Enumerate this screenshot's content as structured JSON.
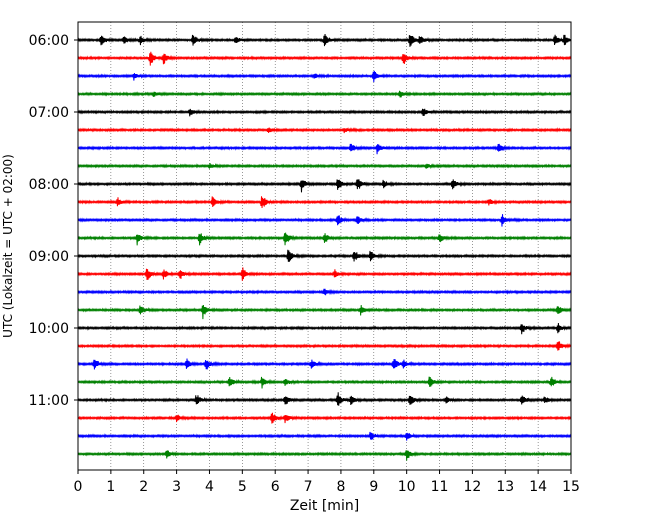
{
  "chart_data": {
    "type": "line",
    "title": "",
    "xlabel": "Zeit  [min]",
    "ylabel": "UTC (Lokalzeit = UTC + 02:00)",
    "xlim": [
      0,
      15
    ],
    "x_ticks": [
      "0",
      "1",
      "2",
      "3",
      "4",
      "5",
      "6",
      "7",
      "8",
      "9",
      "10",
      "11",
      "12",
      "13",
      "14",
      "15"
    ],
    "y_ticks": [
      "06:00",
      "07:00",
      "08:00",
      "09:00",
      "10:00",
      "11:00"
    ],
    "trace_interval_min": 15,
    "grid": "vertical dotted",
    "trace_colors": [
      "#000000",
      "#ff0000",
      "#0000ff",
      "#008000"
    ],
    "traces": [
      {
        "start": "06:00",
        "events": [
          [
            0.7,
            14
          ],
          [
            1.4,
            10
          ],
          [
            1.9,
            12
          ],
          [
            3.5,
            16
          ],
          [
            4.8,
            10
          ],
          [
            7.5,
            16
          ],
          [
            10.1,
            20
          ],
          [
            10.4,
            14
          ],
          [
            14.5,
            14
          ],
          [
            14.8,
            16
          ]
        ]
      },
      {
        "start": "06:15",
        "events": [
          [
            2.2,
            18
          ],
          [
            2.6,
            16
          ],
          [
            9.9,
            16
          ]
        ]
      },
      {
        "start": "06:30",
        "events": [
          [
            1.7,
            8
          ],
          [
            7.2,
            6
          ],
          [
            9.0,
            14
          ]
        ]
      },
      {
        "start": "06:45",
        "events": [
          [
            2.3,
            6
          ],
          [
            9.8,
            10
          ]
        ]
      },
      {
        "start": "07:00",
        "events": [
          [
            3.4,
            12
          ],
          [
            10.5,
            14
          ]
        ]
      },
      {
        "start": "07:15",
        "events": [
          [
            5.8,
            8
          ],
          [
            8.1,
            6
          ]
        ]
      },
      {
        "start": "07:30",
        "events": [
          [
            8.3,
            12
          ],
          [
            9.1,
            14
          ],
          [
            12.8,
            14
          ]
        ]
      },
      {
        "start": "07:45",
        "events": [
          [
            4.0,
            6
          ],
          [
            10.6,
            6
          ]
        ]
      },
      {
        "start": "08:00",
        "events": [
          [
            6.8,
            16
          ],
          [
            7.9,
            16
          ],
          [
            8.5,
            18
          ],
          [
            9.3,
            10
          ],
          [
            11.4,
            14
          ]
        ]
      },
      {
        "start": "08:15",
        "events": [
          [
            1.2,
            10
          ],
          [
            4.1,
            16
          ],
          [
            5.6,
            22
          ],
          [
            12.5,
            8
          ]
        ]
      },
      {
        "start": "08:30",
        "events": [
          [
            7.9,
            16
          ],
          [
            8.5,
            12
          ],
          [
            12.9,
            14
          ]
        ]
      },
      {
        "start": "08:45",
        "events": [
          [
            1.8,
            16
          ],
          [
            3.7,
            16
          ],
          [
            6.3,
            22
          ],
          [
            7.5,
            12
          ],
          [
            11.0,
            12
          ]
        ]
      },
      {
        "start": "09:00",
        "events": [
          [
            6.4,
            20
          ],
          [
            8.4,
            16
          ],
          [
            8.9,
            14
          ]
        ]
      },
      {
        "start": "09:15",
        "events": [
          [
            2.1,
            18
          ],
          [
            2.6,
            14
          ],
          [
            3.1,
            12
          ],
          [
            5.0,
            16
          ],
          [
            7.8,
            10
          ]
        ]
      },
      {
        "start": "09:30",
        "events": [
          [
            7.5,
            8
          ]
        ]
      },
      {
        "start": "09:45",
        "events": [
          [
            1.9,
            14
          ],
          [
            3.8,
            18
          ],
          [
            8.6,
            12
          ],
          [
            14.6,
            14
          ]
        ]
      },
      {
        "start": "10:00",
        "events": [
          [
            13.5,
            14
          ],
          [
            14.6,
            12
          ]
        ]
      },
      {
        "start": "10:15",
        "events": [
          [
            14.6,
            14
          ]
        ]
      },
      {
        "start": "10:30",
        "events": [
          [
            0.5,
            14
          ],
          [
            3.3,
            14
          ],
          [
            3.9,
            16
          ],
          [
            7.1,
            12
          ],
          [
            9.6,
            18
          ],
          [
            9.9,
            10
          ]
        ]
      },
      {
        "start": "10:45",
        "events": [
          [
            4.6,
            14
          ],
          [
            5.6,
            14
          ],
          [
            6.3,
            10
          ],
          [
            10.7,
            14
          ],
          [
            14.4,
            14
          ]
        ]
      },
      {
        "start": "11:00",
        "events": [
          [
            3.6,
            14
          ],
          [
            6.3,
            16
          ],
          [
            7.9,
            20
          ],
          [
            8.3,
            14
          ],
          [
            10.1,
            16
          ],
          [
            11.2,
            10
          ],
          [
            13.5,
            14
          ],
          [
            14.2,
            10
          ]
        ]
      },
      {
        "start": "11:15",
        "events": [
          [
            3.0,
            10
          ],
          [
            5.9,
            18
          ],
          [
            6.3,
            12
          ]
        ]
      },
      {
        "start": "11:30",
        "events": [
          [
            8.9,
            12
          ],
          [
            10.0,
            10
          ]
        ]
      },
      {
        "start": "11:45",
        "events": [
          [
            2.7,
            10
          ],
          [
            10.0,
            14
          ]
        ]
      }
    ]
  }
}
